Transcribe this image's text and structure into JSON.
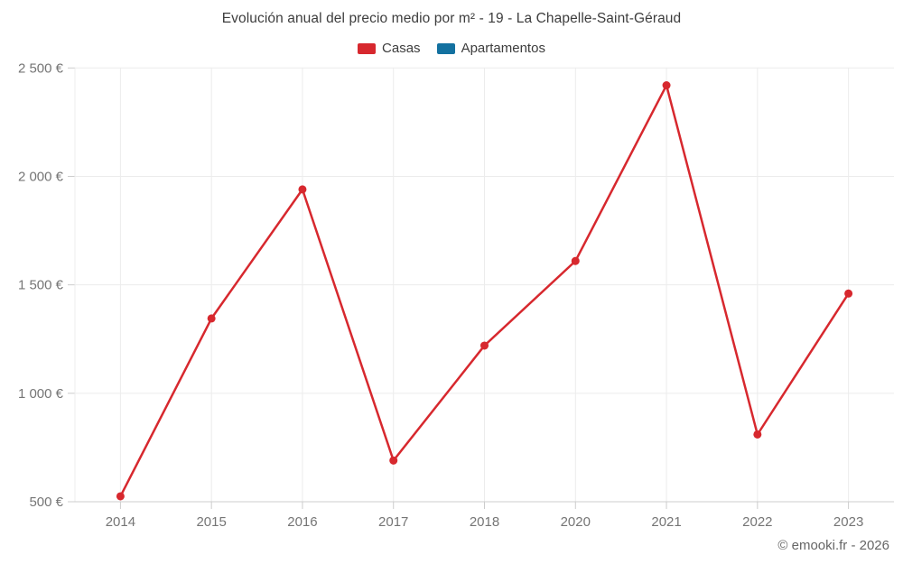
{
  "chart_data": {
    "type": "line",
    "title": "Evolución anual del precio medio por m² - 19 - La Chapelle-Saint-Géraud",
    "categories": [
      "2014",
      "2015",
      "2016",
      "2017",
      "2018",
      "2020",
      "2021",
      "2022",
      "2023"
    ],
    "series": [
      {
        "name": "Casas",
        "color": "#d7282e",
        "values": [
          525,
          1345,
          1940,
          690,
          1220,
          1610,
          2420,
          810,
          1460
        ]
      },
      {
        "name": "Apartamentos",
        "color": "#1371a0",
        "values": []
      }
    ],
    "ylim": [
      500,
      2500
    ],
    "ytick_step": 500,
    "ytick_labels": [
      "500 €",
      "1 000 €",
      "1 500 €",
      "2 000 €",
      "2 500 €"
    ],
    "xlabel": "",
    "ylabel": "",
    "grid": true,
    "legend_position": "top",
    "colors": {
      "gridline": "#ececec",
      "axis_line": "#cccccc",
      "tick_label": "#757575",
      "title_text": "#3d3d3d"
    }
  },
  "footer": {
    "credit": "© emooki.fr - 2026"
  }
}
